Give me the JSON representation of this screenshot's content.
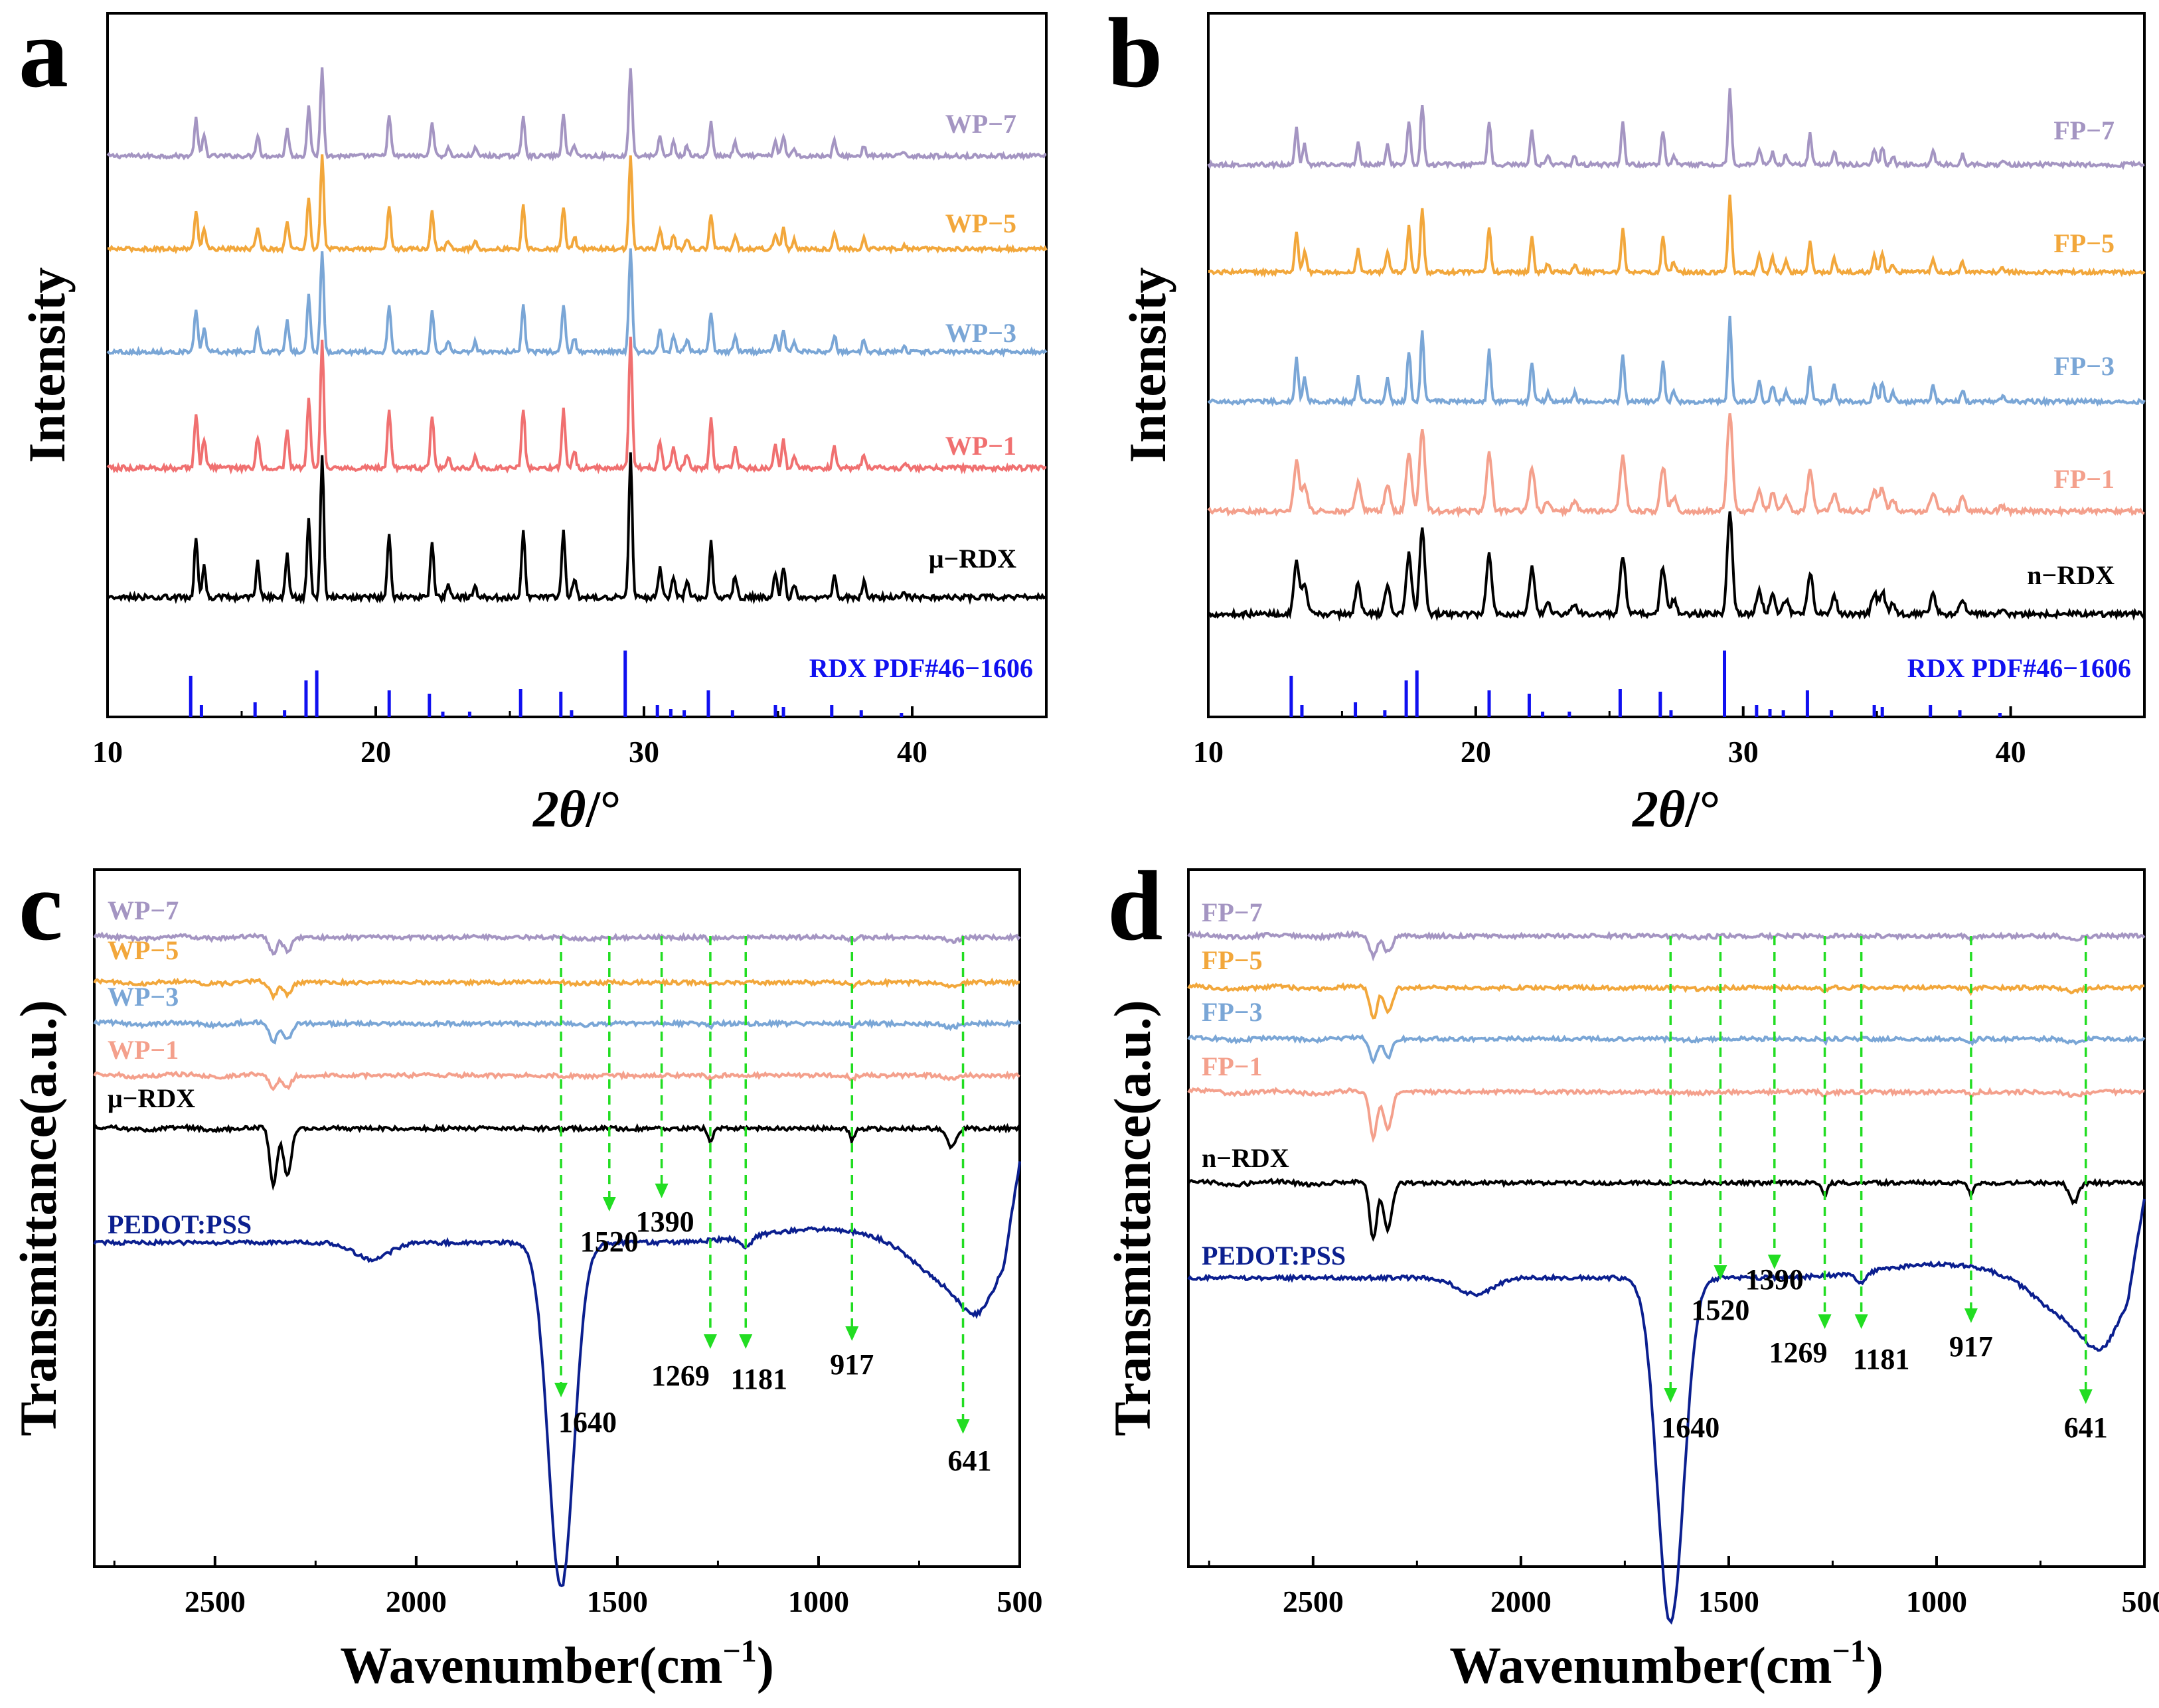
{
  "chart_data": [
    {
      "panel": "a",
      "type": "line",
      "kind": "xrd",
      "xlabel_main": "2",
      "xlabel_theta": "θ",
      "xlabel_unit": "/°",
      "ylabel": "Intensity",
      "xlim": [
        10,
        45
      ],
      "xticks": [
        10,
        20,
        30,
        40
      ],
      "series": [
        {
          "name": "WP−7",
          "color": "#a495c2",
          "peakScale": 0.85
        },
        {
          "name": "WP−5",
          "color": "#f2a73b",
          "peakScale": 0.9
        },
        {
          "name": "WP−3",
          "color": "#7aa6d6",
          "peakScale": 0.95
        },
        {
          "name": "WP−1",
          "color": "#f07070",
          "peakScale": 1.0
        },
        {
          "name": "μ−RDX",
          "color": "#000000",
          "peakScale": 1.0
        }
      ],
      "reference": {
        "label": "RDX PDF#46−1606",
        "color": "#1010f0",
        "lines": [
          [
            13.1,
            0.62
          ],
          [
            13.5,
            0.18
          ],
          [
            15.5,
            0.22
          ],
          [
            16.6,
            0.1
          ],
          [
            17.4,
            0.55
          ],
          [
            17.8,
            0.7
          ],
          [
            20.5,
            0.4
          ],
          [
            22.0,
            0.35
          ],
          [
            22.5,
            0.08
          ],
          [
            23.5,
            0.08
          ],
          [
            25.4,
            0.42
          ],
          [
            26.9,
            0.38
          ],
          [
            27.3,
            0.1
          ],
          [
            29.3,
            1.0
          ],
          [
            30.5,
            0.18
          ],
          [
            31.0,
            0.12
          ],
          [
            31.5,
            0.1
          ],
          [
            32.4,
            0.4
          ],
          [
            33.3,
            0.1
          ],
          [
            34.9,
            0.18
          ],
          [
            35.2,
            0.15
          ],
          [
            37.0,
            0.18
          ],
          [
            38.1,
            0.1
          ],
          [
            39.6,
            0.06
          ]
        ]
      },
      "peaks": [
        [
          13.3,
          0.55
        ],
        [
          13.6,
          0.3
        ],
        [
          15.6,
          0.32
        ],
        [
          16.7,
          0.4
        ],
        [
          17.5,
          0.72
        ],
        [
          18.0,
          1.3
        ],
        [
          20.5,
          0.6
        ],
        [
          22.1,
          0.52
        ],
        [
          22.7,
          0.12
        ],
        [
          23.7,
          0.12
        ],
        [
          25.5,
          0.6
        ],
        [
          27.0,
          0.6
        ],
        [
          27.4,
          0.18
        ],
        [
          29.5,
          1.3
        ],
        [
          30.6,
          0.28
        ],
        [
          31.1,
          0.2
        ],
        [
          31.6,
          0.15
        ],
        [
          32.5,
          0.5
        ],
        [
          33.4,
          0.2
        ],
        [
          34.9,
          0.22
        ],
        [
          35.2,
          0.28
        ],
        [
          35.6,
          0.12
        ],
        [
          37.1,
          0.22
        ],
        [
          38.2,
          0.15
        ],
        [
          39.7,
          0.06
        ]
      ]
    },
    {
      "panel": "b",
      "type": "line",
      "kind": "xrd",
      "xlabel_main": "2",
      "xlabel_theta": "θ",
      "xlabel_unit": "/°",
      "ylabel": "Intensity",
      "xlim": [
        10,
        45
      ],
      "xticks": [
        10,
        20,
        30,
        40
      ],
      "series": [
        {
          "name": "FP−7",
          "color": "#a495c2",
          "peakScale": 0.85
        },
        {
          "name": "FP−5",
          "color": "#f2a73b",
          "peakScale": 0.9
        },
        {
          "name": "FP−3",
          "color": "#7aa6d6",
          "peakScale": 0.95
        },
        {
          "name": "FP−1",
          "color": "#f4a08c",
          "peakScale": 0.9
        },
        {
          "name": "n−RDX",
          "color": "#000000",
          "peakScale": 0.85
        }
      ],
      "reference": {
        "label": "RDX PDF#46−1606",
        "color": "#1010f0",
        "lines": [
          [
            13.1,
            0.62
          ],
          [
            13.5,
            0.18
          ],
          [
            15.5,
            0.22
          ],
          [
            16.6,
            0.1
          ],
          [
            17.4,
            0.55
          ],
          [
            17.8,
            0.7
          ],
          [
            20.5,
            0.4
          ],
          [
            22.0,
            0.35
          ],
          [
            22.5,
            0.08
          ],
          [
            23.5,
            0.08
          ],
          [
            25.4,
            0.42
          ],
          [
            26.9,
            0.38
          ],
          [
            27.3,
            0.1
          ],
          [
            29.3,
            1.0
          ],
          [
            30.5,
            0.18
          ],
          [
            31.0,
            0.12
          ],
          [
            31.5,
            0.1
          ],
          [
            32.4,
            0.4
          ],
          [
            33.3,
            0.1
          ],
          [
            34.9,
            0.18
          ],
          [
            35.2,
            0.15
          ],
          [
            37.0,
            0.18
          ],
          [
            38.1,
            0.1
          ],
          [
            39.6,
            0.06
          ]
        ]
      },
      "peaks": [
        [
          13.3,
          0.55
        ],
        [
          13.6,
          0.3
        ],
        [
          15.6,
          0.32
        ],
        [
          16.7,
          0.3
        ],
        [
          17.5,
          0.65
        ],
        [
          18.0,
          0.9
        ],
        [
          20.5,
          0.65
        ],
        [
          22.1,
          0.5
        ],
        [
          22.7,
          0.12
        ],
        [
          23.7,
          0.12
        ],
        [
          25.5,
          0.62
        ],
        [
          27.0,
          0.5
        ],
        [
          27.4,
          0.15
        ],
        [
          29.5,
          1.1
        ],
        [
          30.6,
          0.25
        ],
        [
          31.1,
          0.2
        ],
        [
          31.6,
          0.15
        ],
        [
          32.5,
          0.45
        ],
        [
          33.4,
          0.2
        ],
        [
          34.9,
          0.22
        ],
        [
          35.2,
          0.25
        ],
        [
          35.6,
          0.12
        ],
        [
          37.1,
          0.2
        ],
        [
          38.2,
          0.15
        ],
        [
          39.7,
          0.06
        ]
      ]
    },
    {
      "panel": "c",
      "type": "line",
      "kind": "ftir",
      "xlabel": "Wavenumber(cm",
      "xlabel_sup": "−1",
      "xlabel_close": ")",
      "ylabel": "Transmittance(a.u.)",
      "xlim": [
        2800,
        500
      ],
      "xticks": [
        2500,
        2000,
        1500,
        1000,
        500
      ],
      "series": [
        {
          "name": "WP−7",
          "color": "#a495c2",
          "depth": 0.3
        },
        {
          "name": "WP−5",
          "color": "#f2a73b",
          "depth": 0.25
        },
        {
          "name": "WP−3",
          "color": "#7aa6d6",
          "depth": 0.35
        },
        {
          "name": "WP−1",
          "color": "#f4a08c",
          "depth": 0.25
        },
        {
          "name": "μ−RDX",
          "color": "#000000",
          "depth": 1.0
        },
        {
          "name": "PEDOT:PSS",
          "color": "#0b1f8f",
          "depth": 1.0
        }
      ],
      "peak_markers": [
        {
          "wavenumber": 1640,
          "label": "1640"
        },
        {
          "wavenumber": 1520,
          "label": "1520"
        },
        {
          "wavenumber": 1390,
          "label": "1390"
        },
        {
          "wavenumber": 1269,
          "label": "1269"
        },
        {
          "wavenumber": 1181,
          "label": "1181"
        },
        {
          "wavenumber": 917,
          "label": "917"
        },
        {
          "wavenumber": 641,
          "label": "641"
        }
      ]
    },
    {
      "panel": "d",
      "type": "line",
      "kind": "ftir",
      "xlabel": "Wavenumber(cm",
      "xlabel_sup": "−1",
      "xlabel_close": ")",
      "ylabel": "Transmittance(a.u.)",
      "xlim": [
        2800,
        500
      ],
      "xticks": [
        2500,
        2000,
        1500,
        1000,
        500
      ],
      "series": [
        {
          "name": "FP−7",
          "color": "#a495c2",
          "depth": 0.35
        },
        {
          "name": "FP−5",
          "color": "#f2a73b",
          "depth": 0.55
        },
        {
          "name": "FP−3",
          "color": "#7aa6d6",
          "depth": 0.4
        },
        {
          "name": "FP−1",
          "color": "#f4a08c",
          "depth": 0.8
        },
        {
          "name": "n−RDX",
          "color": "#000000",
          "depth": 1.0
        },
        {
          "name": "PEDOT:PSS",
          "color": "#0b1f8f",
          "depth": 1.0
        }
      ],
      "peak_markers": [
        {
          "wavenumber": 1640,
          "label": "1640"
        },
        {
          "wavenumber": 1520,
          "label": "1520"
        },
        {
          "wavenumber": 1390,
          "label": "1390"
        },
        {
          "wavenumber": 1269,
          "label": "1269"
        },
        {
          "wavenumber": 1181,
          "label": "1181"
        },
        {
          "wavenumber": 917,
          "label": "917"
        },
        {
          "wavenumber": 641,
          "label": "641"
        }
      ]
    }
  ],
  "colors": {
    "axis": "#000000",
    "marker_arrow": "#22dd22"
  }
}
